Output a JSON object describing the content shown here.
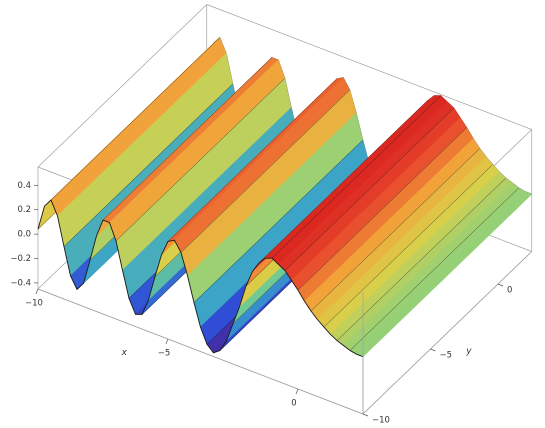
{
  "chart_data": {
    "type": "surface",
    "x_label": "x",
    "y_label": "y",
    "xlim": [
      -10,
      2.5
    ],
    "ylim": [
      -10,
      2.5
    ],
    "zlim": [
      -0.45,
      0.55
    ],
    "xticks": [
      {
        "value": -10,
        "label": "−10"
      },
      {
        "value": -5,
        "label": "−5"
      },
      0
    ],
    "yticks": [
      0,
      {
        "value": -5,
        "label": "−5"
      },
      {
        "value": -10,
        "label": "−10"
      }
    ],
    "zticks": [
      0.4,
      0.2,
      {
        "value": 0,
        "label": "0.0"
      },
      {
        "value": -0.2,
        "label": "−0.2"
      },
      {
        "value": -0.4,
        "label": "−0.4"
      }
    ],
    "colormap": [
      "#4b1d8f",
      "#2f4fd6",
      "#3aa3c9",
      "#79d08a",
      "#d9d04a",
      "#f2a23a",
      "#e8462c",
      "#d8231f"
    ],
    "box_color": "#a0a0a0",
    "mesh_color": "#1a1a1a",
    "x": [
      -10,
      -9.75,
      -9.5,
      -9.25,
      -9,
      -8.75,
      -8.5,
      -8.25,
      -8,
      -7.75,
      -7.5,
      -7.25,
      -7,
      -6.75,
      -6.5,
      -6.25,
      -6,
      -5.75,
      -5.5,
      -5.25,
      -5,
      -4.75,
      -4.5,
      -4.25,
      -4,
      -3.75,
      -3.5,
      -3.25,
      -3,
      -2.75,
      -2.5,
      -2.25,
      -2,
      -1.75,
      -1.5,
      -1.25,
      -1,
      -0.75,
      -0.5,
      -0.25,
      0,
      0.25,
      0.5,
      0.75,
      1,
      1.25,
      1.5,
      1.75,
      2,
      2.25,
      2.5
    ],
    "values": [
      0.04,
      0.25,
      0.32,
      0.21,
      -0.02,
      -0.24,
      -0.33,
      -0.26,
      -0.05,
      0.17,
      0.32,
      0.32,
      0.19,
      -0.03,
      -0.24,
      -0.35,
      -0.33,
      -0.19,
      0.02,
      0.22,
      0.35,
      0.38,
      0.3,
      0.13,
      -0.07,
      -0.25,
      -0.37,
      -0.42,
      -0.38,
      -0.28,
      -0.12,
      0.04,
      0.23,
      0.37,
      0.46,
      0.52,
      0.54,
      0.51,
      0.48,
      0.42,
      0.36,
      0.29,
      0.23,
      0.18,
      0.14,
      0.1,
      0.07,
      0.05,
      0.03,
      0.02,
      0.02
    ]
  }
}
